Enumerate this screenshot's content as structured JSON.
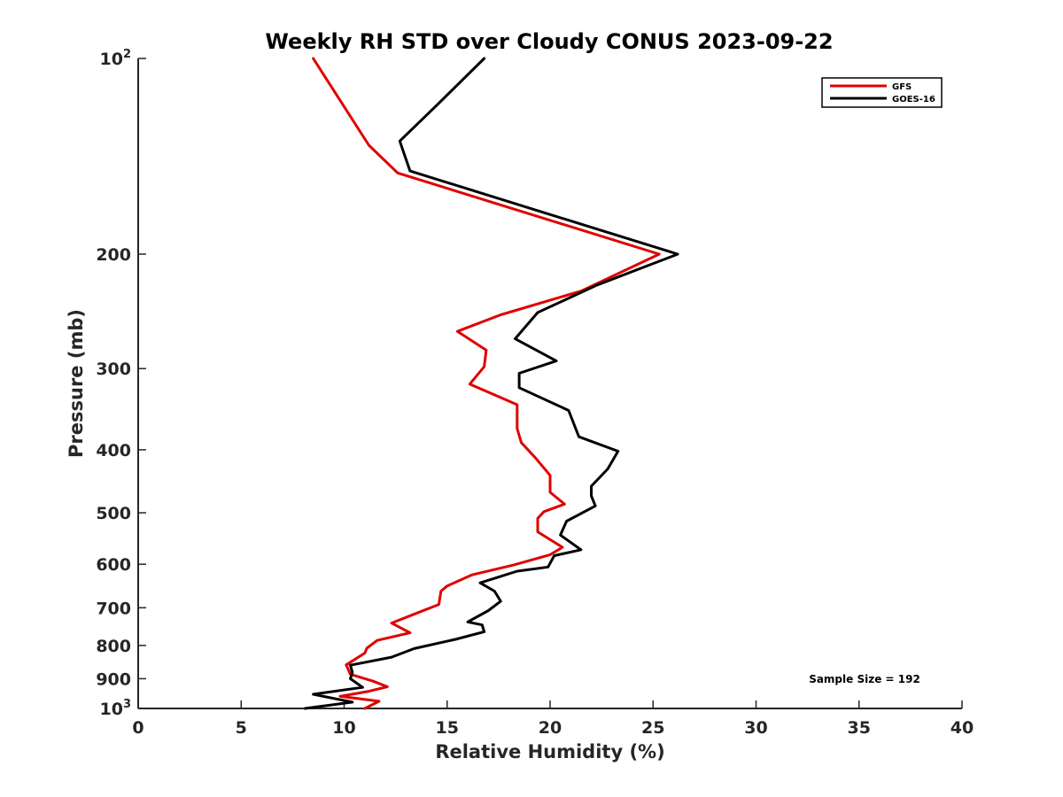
{
  "chart_data": {
    "type": "line",
    "title": "Weekly RH STD over Cloudy CONUS 2023-09-22",
    "xlabel": "Relative Humidity (%)",
    "ylabel": "Pressure (mb)",
    "xlim": [
      0,
      40
    ],
    "ylim": [
      100,
      1000
    ],
    "yscale": "log",
    "y_reversed": true,
    "x_ticks": [
      "0",
      "5",
      "10",
      "15",
      "20",
      "25",
      "30",
      "35",
      "40"
    ],
    "y_ticks": [
      {
        "value": 100,
        "label": "10",
        "sup": "2"
      },
      {
        "value": 200,
        "label": "200",
        "sup": ""
      },
      {
        "value": 300,
        "label": "300",
        "sup": ""
      },
      {
        "value": 400,
        "label": "400",
        "sup": ""
      },
      {
        "value": 500,
        "label": "500",
        "sup": ""
      },
      {
        "value": 600,
        "label": "600",
        "sup": ""
      },
      {
        "value": 700,
        "label": "700",
        "sup": ""
      },
      {
        "value": 800,
        "label": "800",
        "sup": ""
      },
      {
        "value": 900,
        "label": "900",
        "sup": ""
      },
      {
        "value": 1000,
        "label": "10",
        "sup": "3"
      }
    ],
    "legend_position": "top-right",
    "annotation": "Sample Size = 192",
    "series": [
      {
        "name": "GFS",
        "color": "#e00000",
        "points": [
          [
            8.5,
            100
          ],
          [
            11.2,
            136
          ],
          [
            12.6,
            150
          ],
          [
            25.3,
            200
          ],
          [
            21.5,
            228
          ],
          [
            17.6,
            248
          ],
          [
            15.5,
            263
          ],
          [
            16.9,
            281
          ],
          [
            16.8,
            298
          ],
          [
            16.1,
            317
          ],
          [
            18.4,
            341
          ],
          [
            18.4,
            371
          ],
          [
            18.6,
            390
          ],
          [
            19.3,
            412
          ],
          [
            20.0,
            438
          ],
          [
            20.0,
            465
          ],
          [
            20.7,
            485
          ],
          [
            19.7,
            498
          ],
          [
            19.4,
            510
          ],
          [
            19.4,
            535
          ],
          [
            20.6,
            565
          ],
          [
            20.0,
            580
          ],
          [
            18.2,
            602
          ],
          [
            16.2,
            623
          ],
          [
            15.0,
            648
          ],
          [
            14.7,
            660
          ],
          [
            14.6,
            692
          ],
          [
            13.6,
            712
          ],
          [
            12.3,
            739
          ],
          [
            13.2,
            765
          ],
          [
            11.6,
            786
          ],
          [
            11.1,
            808
          ],
          [
            11.0,
            822
          ],
          [
            10.1,
            857
          ],
          [
            10.3,
            886
          ],
          [
            11.4,
            908
          ],
          [
            12.1,
            926
          ],
          [
            11.2,
            941
          ],
          [
            9.8,
            958
          ],
          [
            11.7,
            975
          ],
          [
            11.0,
            1000
          ]
        ]
      },
      {
        "name": "GOES-16",
        "color": "#000000",
        "points": [
          [
            16.8,
            100
          ],
          [
            14.5,
            118
          ],
          [
            12.7,
            134
          ],
          [
            13.2,
            149
          ],
          [
            26.2,
            200
          ],
          [
            22.3,
            223
          ],
          [
            19.4,
            246
          ],
          [
            18.3,
            270
          ],
          [
            20.3,
            292
          ],
          [
            18.5,
            305
          ],
          [
            18.5,
            321
          ],
          [
            20.9,
            348
          ],
          [
            21.4,
            382
          ],
          [
            23.3,
            402
          ],
          [
            22.8,
            428
          ],
          [
            22.0,
            455
          ],
          [
            22.0,
            471
          ],
          [
            22.2,
            488
          ],
          [
            20.8,
            515
          ],
          [
            20.5,
            541
          ],
          [
            21.5,
            570
          ],
          [
            20.2,
            582
          ],
          [
            19.9,
            606
          ],
          [
            18.4,
            615
          ],
          [
            16.6,
            641
          ],
          [
            17.3,
            660
          ],
          [
            17.6,
            684
          ],
          [
            17.0,
            707
          ],
          [
            16.0,
            736
          ],
          [
            16.7,
            744
          ],
          [
            16.8,
            762
          ],
          [
            15.4,
            783
          ],
          [
            13.4,
            809
          ],
          [
            12.3,
            834
          ],
          [
            10.3,
            858
          ],
          [
            10.4,
            880
          ],
          [
            10.3,
            900
          ],
          [
            10.9,
            928
          ],
          [
            8.5,
            951
          ],
          [
            10.4,
            978
          ],
          [
            8.1,
            1000
          ]
        ]
      }
    ]
  }
}
